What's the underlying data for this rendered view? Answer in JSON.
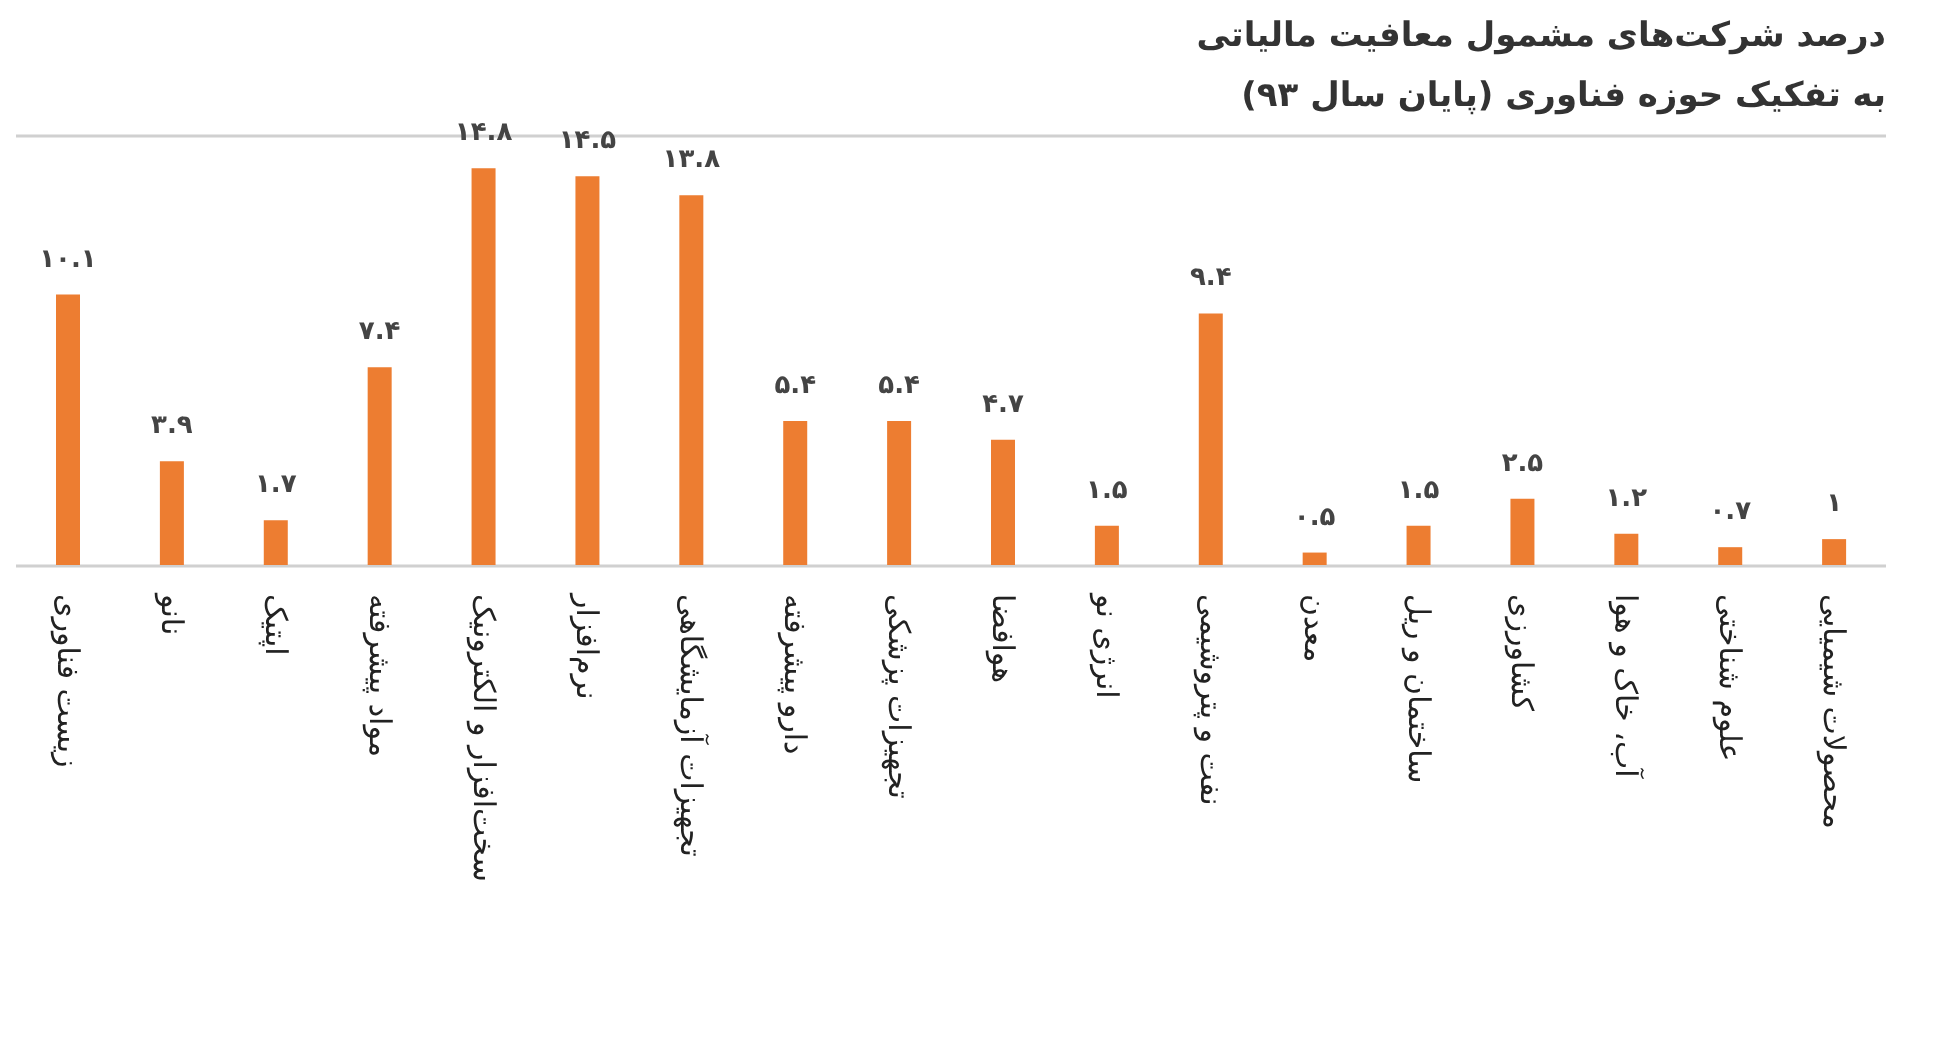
{
  "chart_data": {
    "type": "bar",
    "title": "درصد شرکت‌های مشمول معافیت مالیاتی",
    "subtitle": "به تفکیک حوزه فناوری (پایان سال ۹۳)",
    "categories": [
      "زیست فناوری",
      "نانو",
      "اپتیک",
      "مواد پیشرفته",
      "سخت‌افزار و الکترونیک",
      "نرم‌افزار",
      "تجهیزات آزمایشگاهی",
      "دارو پیشرفته",
      "تجهیزات پزشکی",
      "هوافضا",
      "انرژی نو",
      "نفت و پتروشیمی",
      "معدن",
      "ساختمان و ریل",
      "کشاورزی",
      "آب، خاک و هوا",
      "علوم شناختی",
      "محصولات شیمیایی"
    ],
    "values": [
      10.1,
      3.9,
      1.7,
      7.4,
      14.8,
      14.5,
      13.8,
      5.4,
      5.4,
      4.7,
      1.5,
      9.4,
      0.5,
      1.5,
      2.5,
      1.2,
      0.7,
      1
    ],
    "value_labels": [
      "۱۰.۱",
      "۳.۹",
      "۱.۷",
      "۷.۴",
      "۱۴.۸",
      "۱۴.۵",
      "۱۳.۸",
      "۵.۴",
      "۵.۴",
      "۴.۷",
      "۱.۵",
      "۹.۴",
      "۰.۵",
      "۱.۵",
      "۲.۵",
      "۱.۲",
      "۰.۷",
      "۱"
    ],
    "color": "#ed7d31",
    "ylim": [
      0,
      16
    ],
    "grid": "y",
    "tick_labels": "x"
  }
}
